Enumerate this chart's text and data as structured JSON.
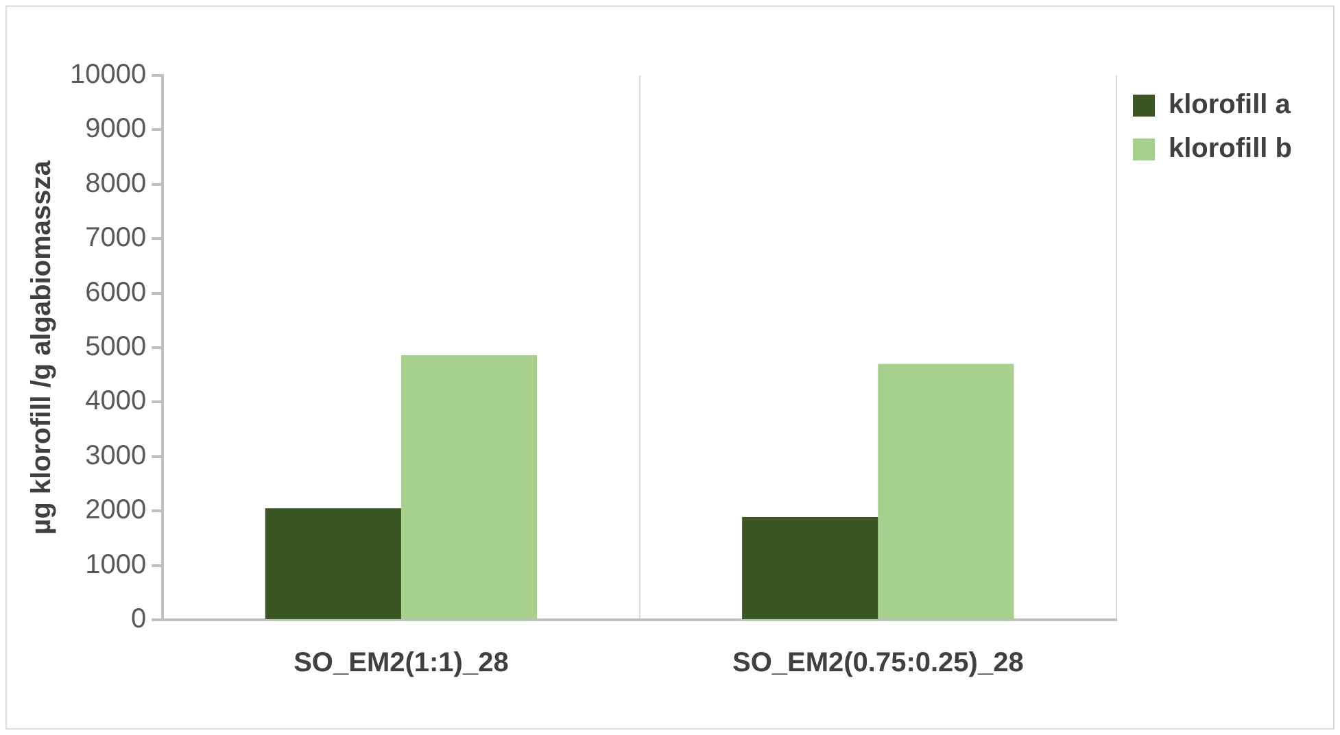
{
  "chart_data": {
    "type": "bar",
    "ylabel": "µg klorofill /g algabiomassza",
    "categories": [
      "SO_EM2(1:1)_28",
      "SO_EM2(0.75:0.25)_28"
    ],
    "series": [
      {
        "name": "klorofill a",
        "color": "#3a5723",
        "values": [
          2050,
          1890
        ]
      },
      {
        "name": "klorofill b",
        "color": "#a8d08d",
        "values": [
          4860,
          4700
        ]
      }
    ],
    "ylim": [
      0,
      10000
    ],
    "yticks": [
      0,
      1000,
      2000,
      3000,
      4000,
      5000,
      6000,
      7000,
      8000,
      9000,
      10000
    ],
    "grid": "x",
    "legend": "top right"
  }
}
